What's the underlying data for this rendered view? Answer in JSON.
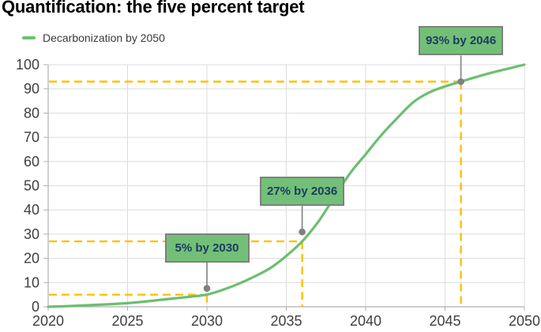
{
  "title": "Quantification: the five percent target",
  "legend": {
    "label": "Decarbonization by 2050"
  },
  "colors": {
    "curve": "#6cbf6f",
    "annotation_fill": "#72c077",
    "annotation_border": "#7f7f7f",
    "annotation_text": "#1f3b63",
    "guide": "#ffc000",
    "grid": "#dcdcdc",
    "axis": "#b0b0b0",
    "tick_text": "#3f3f3f",
    "leader": "#808080"
  },
  "chart_data": {
    "type": "line",
    "title": "Quantification: the five percent target",
    "xlabel": "",
    "ylabel": "",
    "xlim": [
      2020,
      2050
    ],
    "ylim": [
      0,
      100
    ],
    "x_ticks": [
      "2020",
      "2025",
      "2030",
      "2035",
      "2040",
      "2045",
      "2050"
    ],
    "y_ticks": [
      "0",
      "10",
      "20",
      "30",
      "40",
      "50",
      "60",
      "70",
      "80",
      "90",
      "100"
    ],
    "grid": "both",
    "legend_position": "top-left",
    "series": [
      {
        "name": "Decarbonization by 2050",
        "color": "#6cbf6f",
        "points": [
          [
            2020,
            0
          ],
          [
            2021,
            0.2
          ],
          [
            2022,
            0.5
          ],
          [
            2023,
            0.8
          ],
          [
            2024,
            1.1
          ],
          [
            2025,
            1.5
          ],
          [
            2026,
            2.1
          ],
          [
            2027,
            2.8
          ],
          [
            2028,
            3.5
          ],
          [
            2029,
            4.2
          ],
          [
            2030,
            5
          ],
          [
            2031,
            7
          ],
          [
            2032,
            9.5
          ],
          [
            2033,
            12.5
          ],
          [
            2034,
            16
          ],
          [
            2035,
            21
          ],
          [
            2036,
            27
          ],
          [
            2037,
            35
          ],
          [
            2038,
            45
          ],
          [
            2039,
            55
          ],
          [
            2040,
            63
          ],
          [
            2041,
            71
          ],
          [
            2042,
            78
          ],
          [
            2043,
            84.5
          ],
          [
            2044,
            88.5
          ],
          [
            2045,
            91
          ],
          [
            2046,
            93
          ],
          [
            2047,
            95
          ],
          [
            2048,
            96.8
          ],
          [
            2049,
            98.4
          ],
          [
            2050,
            100
          ]
        ]
      }
    ],
    "annotations": [
      {
        "label": "5% by 2030",
        "year": 2030,
        "value": 5
      },
      {
        "label": "27% by 2036",
        "year": 2036,
        "value": 27
      },
      {
        "label": "93% by 2046",
        "year": 2046,
        "value": 93
      }
    ]
  }
}
